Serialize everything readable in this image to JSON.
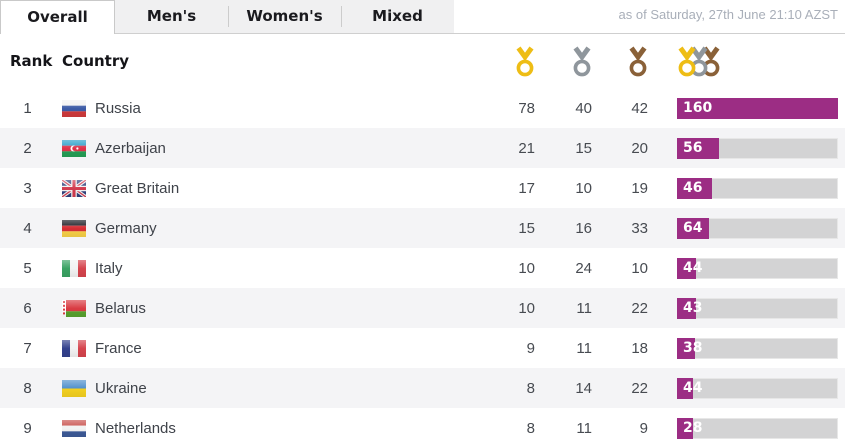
{
  "tabs": [
    {
      "label": "Overall",
      "active": true
    },
    {
      "label": "Men's",
      "active": false
    },
    {
      "label": "Women's",
      "active": false
    },
    {
      "label": "Mixed",
      "active": false
    }
  ],
  "timestamp": "as of Saturday, 27th June 21:10 AZST",
  "colors": {
    "gold": "#eebd15",
    "silver": "#8f969c",
    "bronze": "#8a6138",
    "bar_fill": "#9c2d84",
    "bar_track": "#d3d3d4"
  },
  "table": {
    "headers": {
      "rank": "Rank",
      "country": "Country"
    },
    "medal_columns": [
      "gold-medal-icon",
      "silver-medal-icon",
      "bronze-medal-icon",
      "total-medals-icon"
    ],
    "rows": [
      {
        "rank": "1",
        "country": "Russia",
        "gold": "78",
        "silver": "40",
        "bronze": "42",
        "total": "160",
        "bar_pct": 100,
        "flag": {
          "code": "ru",
          "type": "h",
          "colors": [
            "#f2f2f2",
            "#3c5ba6",
            "#cf3a3c"
          ]
        }
      },
      {
        "rank": "2",
        "country": "Azerbaijan",
        "gold": "21",
        "silver": "15",
        "bronze": "20",
        "total": "56",
        "bar_pct": 26,
        "flag": {
          "code": "az",
          "type": "h",
          "colors": [
            "#2b9fc9",
            "#df3249",
            "#259e56"
          ]
        }
      },
      {
        "rank": "3",
        "country": "Great Britain",
        "gold": "17",
        "silver": "10",
        "bronze": "19",
        "total": "46",
        "bar_pct": 22,
        "flag": {
          "code": "gb",
          "type": "uk",
          "colors": [
            "#30407c",
            "#d23b4f",
            "#f2f2f2"
          ]
        }
      },
      {
        "rank": "4",
        "country": "Germany",
        "gold": "15",
        "silver": "16",
        "bronze": "33",
        "total": "64",
        "bar_pct": 20,
        "flag": {
          "code": "de",
          "type": "h",
          "colors": [
            "#1b1b23",
            "#d62d33",
            "#f6cf46"
          ]
        }
      },
      {
        "rank": "5",
        "country": "Italy",
        "gold": "10",
        "silver": "24",
        "bronze": "10",
        "total": "44",
        "bar_pct": 12,
        "flag": {
          "code": "it",
          "type": "v",
          "colors": [
            "#3aa263",
            "#f2f2f2",
            "#d5444d"
          ]
        }
      },
      {
        "rank": "6",
        "country": "Belarus",
        "gold": "10",
        "silver": "11",
        "bronze": "22",
        "total": "43",
        "bar_pct": 12,
        "flag": {
          "code": "by",
          "type": "by",
          "colors": [
            "#d93b42",
            "#58a12e"
          ]
        }
      },
      {
        "rank": "7",
        "country": "France",
        "gold": "9",
        "silver": "11",
        "bronze": "18",
        "total": "38",
        "bar_pct": 11,
        "flag": {
          "code": "fr",
          "type": "v",
          "colors": [
            "#33418d",
            "#f2f2f2",
            "#d5444d"
          ]
        }
      },
      {
        "rank": "8",
        "country": "Ukraine",
        "gold": "8",
        "silver": "14",
        "bronze": "22",
        "total": "44",
        "bar_pct": 10,
        "flag": {
          "code": "ua",
          "type": "h",
          "colors": [
            "#5090cc",
            "#f3d020"
          ]
        }
      },
      {
        "rank": "9",
        "country": "Netherlands",
        "gold": "8",
        "silver": "11",
        "bronze": "9",
        "total": "28",
        "bar_pct": 10,
        "flag": {
          "code": "nl",
          "type": "h",
          "colors": [
            "#c8504c",
            "#f2f2f2",
            "#3d5a97"
          ]
        }
      }
    ]
  }
}
